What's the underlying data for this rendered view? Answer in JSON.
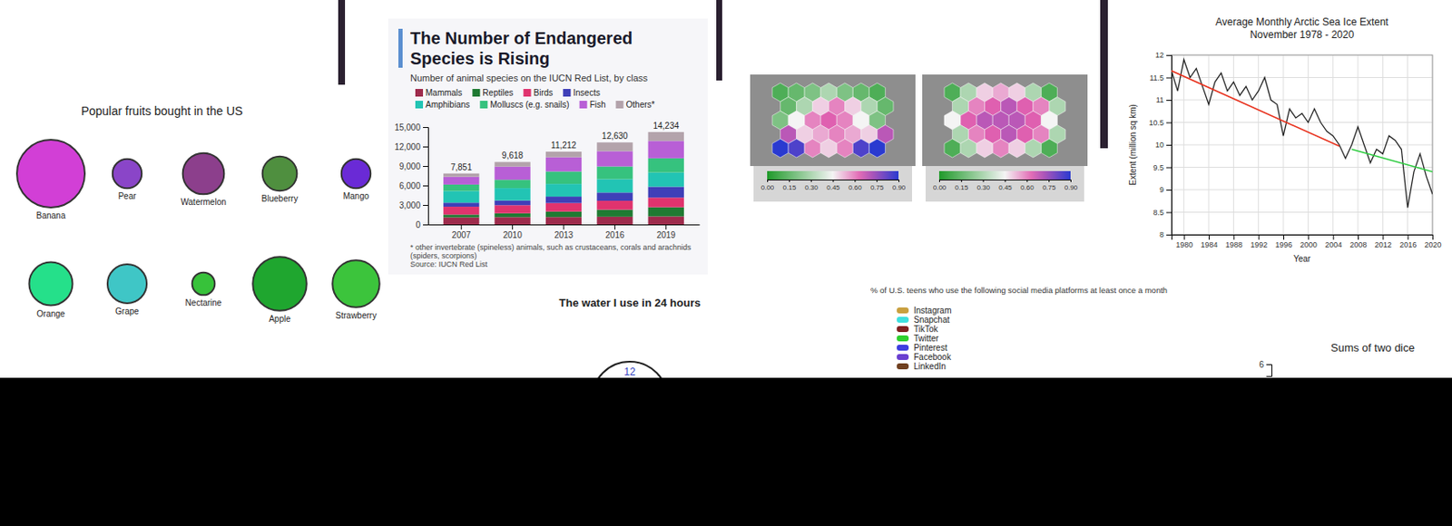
{
  "chart_data": [
    {
      "type": "bubble",
      "title": "Popular fruits bought in the US",
      "categories": [
        "Banana",
        "Pear",
        "Watermelon",
        "Blueberry",
        "Mango",
        "Orange",
        "Grape",
        "Nectarine",
        "Apple",
        "Strawberry"
      ],
      "values": [
        27,
        5,
        10,
        7,
        5,
        11,
        9,
        3,
        17,
        13
      ],
      "colors": [
        "#d23fd6",
        "#8a45c8",
        "#8c3f8c",
        "#4f8f3f",
        "#6a2ad6",
        "#25e08a",
        "#3fc6c6",
        "#37c23a",
        "#1fa62f",
        "#3cc43c"
      ]
    },
    {
      "type": "bar",
      "title": "The Number of Endangered Species is Rising",
      "subtitle": "Number of animal species on the IUCN Red List, by class",
      "categories": [
        "2007",
        "2010",
        "2013",
        "2016",
        "2019"
      ],
      "series": [
        {
          "name": "Mammals",
          "color": "#9e2b4c",
          "values": [
            1094,
            1131,
            1140,
            1194,
            1244
          ]
        },
        {
          "name": "Reptiles",
          "color": "#1f7a32",
          "values": [
            422,
            594,
            847,
            1079,
            1409
          ]
        },
        {
          "name": "Birds",
          "color": "#e0336e",
          "values": [
            1217,
            1240,
            1313,
            1375,
            1486
          ]
        },
        {
          "name": "Insects",
          "color": "#3f3fb8",
          "values": [
            623,
            733,
            993,
            1268,
            1669
          ]
        },
        {
          "name": "Amphibians",
          "color": "#22c4b4",
          "values": [
            1808,
            1898,
            1950,
            2068,
            2200
          ]
        },
        {
          "name": "Molluscs (e.g. snails)",
          "color": "#36c27e",
          "values": [
            978,
            1288,
            1920,
            1950,
            2187
          ]
        },
        {
          "name": "Fish",
          "color": "#b85fd6",
          "values": [
            1201,
            2028,
            2190,
            2359,
            2674
          ]
        },
        {
          "name": "Others*",
          "color": "#b3a3ab",
          "values": [
            508,
            706,
            859,
            1337,
            1365
          ]
        }
      ],
      "stacked": true,
      "legend": "top",
      "totals": [
        7851,
        9618,
        11212,
        12630,
        14234
      ],
      "total_labels": [
        "7,851",
        "9,618",
        "11,212",
        "12,630",
        "14,234"
      ],
      "ylim": [
        0,
        15000
      ],
      "yticks": [
        0,
        {
          "value": 3000,
          "label": "3,000"
        },
        {
          "value": 6000,
          "label": "6,000"
        },
        {
          "value": 9000,
          "label": "9,000"
        },
        {
          "value": 12000,
          "label": "12,000"
        },
        {
          "value": 15000,
          "label": "15,000"
        }
      ],
      "notes": [
        "* other invertebrate (spineless) animals, such as crustaceans, corals and arachnids (spiders, scorpions)",
        "Source: IUCN Red List"
      ]
    },
    {
      "type": "hexbin",
      "cells": [
        [
          0.1,
          0.15,
          0.2,
          0.3,
          0.2,
          0.15,
          0.1
        ],
        [
          0.15,
          0.3,
          0.5,
          0.6,
          0.5,
          0.3,
          0.15
        ],
        [
          0.2,
          0.45,
          0.6,
          0.65,
          0.6,
          0.45,
          0.2
        ],
        [
          0.7,
          0.5,
          0.55,
          0.6,
          0.55,
          0.5,
          0.7
        ],
        [
          0.9,
          0.85,
          0.6,
          0.5,
          0.6,
          0.85,
          0.9
        ]
      ],
      "colorbar_range": [
        0,
        0.9
      ],
      "colorbar_ticks": [
        {
          "value": 0,
          "label": "0.00"
        },
        0.15,
        {
          "value": 0.3,
          "label": "0.30"
        },
        0.45,
        {
          "value": 0.6,
          "label": "0.60"
        },
        0.75,
        {
          "value": 0.9,
          "label": "0.90"
        }
      ]
    },
    {
      "type": "hexbin",
      "cells": [
        [
          0.1,
          0.3,
          0.5,
          0.55,
          0.5,
          0.3,
          0.1
        ],
        [
          0.3,
          0.6,
          0.65,
          0.7,
          0.65,
          0.6,
          0.3
        ],
        [
          0.45,
          0.65,
          0.7,
          0.7,
          0.7,
          0.65,
          0.45
        ],
        [
          0.3,
          0.6,
          0.65,
          0.7,
          0.65,
          0.6,
          0.3
        ],
        [
          0.1,
          0.3,
          0.5,
          0.6,
          0.5,
          0.3,
          0.1
        ]
      ],
      "colorbar_range": [
        0,
        0.9
      ],
      "colorbar_ticks": [
        {
          "value": 0,
          "label": "0.00"
        },
        0.15,
        {
          "value": 0.3,
          "label": "0.30"
        },
        0.45,
        {
          "value": 0.6,
          "label": "0.60"
        },
        0.75,
        {
          "value": 0.9,
          "label": "0.90"
        }
      ]
    },
    {
      "type": "line",
      "title": "Average Monthly Arctic Sea Ice Extent",
      "subtitle": "November 1978 - 2020",
      "x_label": "Year",
      "y_label": "Extent (million sq km)",
      "grid": true,
      "x": [
        1978,
        1979,
        1980,
        1981,
        1982,
        1983,
        1984,
        1985,
        1986,
        1987,
        1988,
        1989,
        1990,
        1991,
        1992,
        1993,
        1994,
        1995,
        1996,
        1997,
        1998,
        1999,
        2000,
        2001,
        2002,
        2003,
        2004,
        2005,
        2006,
        2007,
        2008,
        2009,
        2010,
        2011,
        2012,
        2013,
        2014,
        2015,
        2016,
        2017,
        2018,
        2019,
        2020
      ],
      "series": [
        {
          "color": "#222222",
          "values": [
            11.65,
            11.2,
            11.9,
            11.5,
            11.7,
            11.3,
            10.9,
            11.4,
            11.6,
            11.2,
            11.4,
            11.1,
            11.3,
            11,
            11.2,
            11.5,
            11,
            10.9,
            10.2,
            10.8,
            10.6,
            10.7,
            10.5,
            10.8,
            10.5,
            10.3,
            10.2,
            10,
            9.7,
            10,
            10.4,
            10,
            9.6,
            9.9,
            9.8,
            10.2,
            10.1,
            9.9,
            8.6,
            9.4,
            9.8,
            9.3,
            8.9
          ]
        },
        {
          "color": "#e8321e",
          "x": [
            1978,
            2005
          ],
          "values": [
            11.65,
            9.97
          ]
        },
        {
          "color": "#2ecc40",
          "x": [
            2007,
            2020
          ],
          "values": [
            9.9,
            9.4
          ]
        }
      ],
      "xlim": [
        1978,
        2020
      ],
      "xticks": [
        1980,
        1984,
        1988,
        1992,
        1996,
        2000,
        2004,
        2008,
        2012,
        2016,
        2020
      ],
      "ylim": [
        8,
        12
      ],
      "yticks": [
        8,
        8.5,
        9,
        9.5,
        10,
        10.5,
        11,
        11.5,
        12
      ]
    },
    {
      "type": "clock",
      "title": "The water I use in 24 hours",
      "labels": [
        "12"
      ]
    },
    {
      "type": "pie",
      "title": "% of U.S. teens who use the following social media platforms at least once a month",
      "categories": [
        "Instagram",
        "Snapchat",
        "TikTok",
        "Twitter",
        "Pinterest",
        "Facebook",
        "LinkedIn"
      ],
      "colors": [
        "#c9a040",
        "#3fe0e0",
        "#802020",
        "#2fd02f",
        "#3f3fe0",
        "#6a40d0",
        "#704020"
      ],
      "legend": "top-left"
    },
    {
      "type": "bar",
      "title": "Sums of two dice",
      "ylim": [
        0,
        6
      ],
      "yticks": [
        6
      ]
    }
  ]
}
